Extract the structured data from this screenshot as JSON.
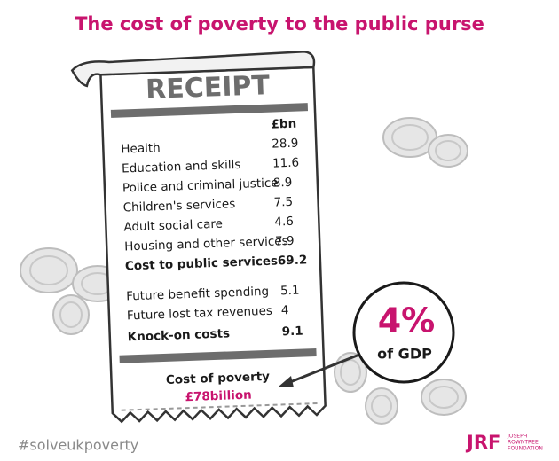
{
  "title": "The cost of poverty to the public purse",
  "receipt": {
    "heading": "RECEIPT",
    "unit": "£bn",
    "public_services": [
      {
        "label": "Health",
        "value": "28.9"
      },
      {
        "label": "Education and skills",
        "value": "11.6"
      },
      {
        "label": "Police and criminal justice",
        "value": "8.9"
      },
      {
        "label": "Children's services",
        "value": "7.5"
      },
      {
        "label": "Adult social care",
        "value": "4.6"
      },
      {
        "label": "Housing and other services",
        "value": "7.9"
      }
    ],
    "public_services_total": {
      "label": "Cost to public services",
      "value": "69.2"
    },
    "knock_on": [
      {
        "label": "Future benefit spending",
        "value": "5.1"
      },
      {
        "label": "Future lost tax revenues",
        "value": "4"
      }
    ],
    "knock_on_total": {
      "label": "Knock-on costs",
      "value": "9.1"
    },
    "total_label": "Cost of poverty",
    "total_value": "£78billion"
  },
  "callout": {
    "value": "4%",
    "label": "of GDP"
  },
  "hashtag": "#solveukpoverty",
  "logo": {
    "mark": "JRF",
    "lines": [
      "JOSEPH",
      "ROWNTREE",
      "FOUNDATION"
    ]
  }
}
